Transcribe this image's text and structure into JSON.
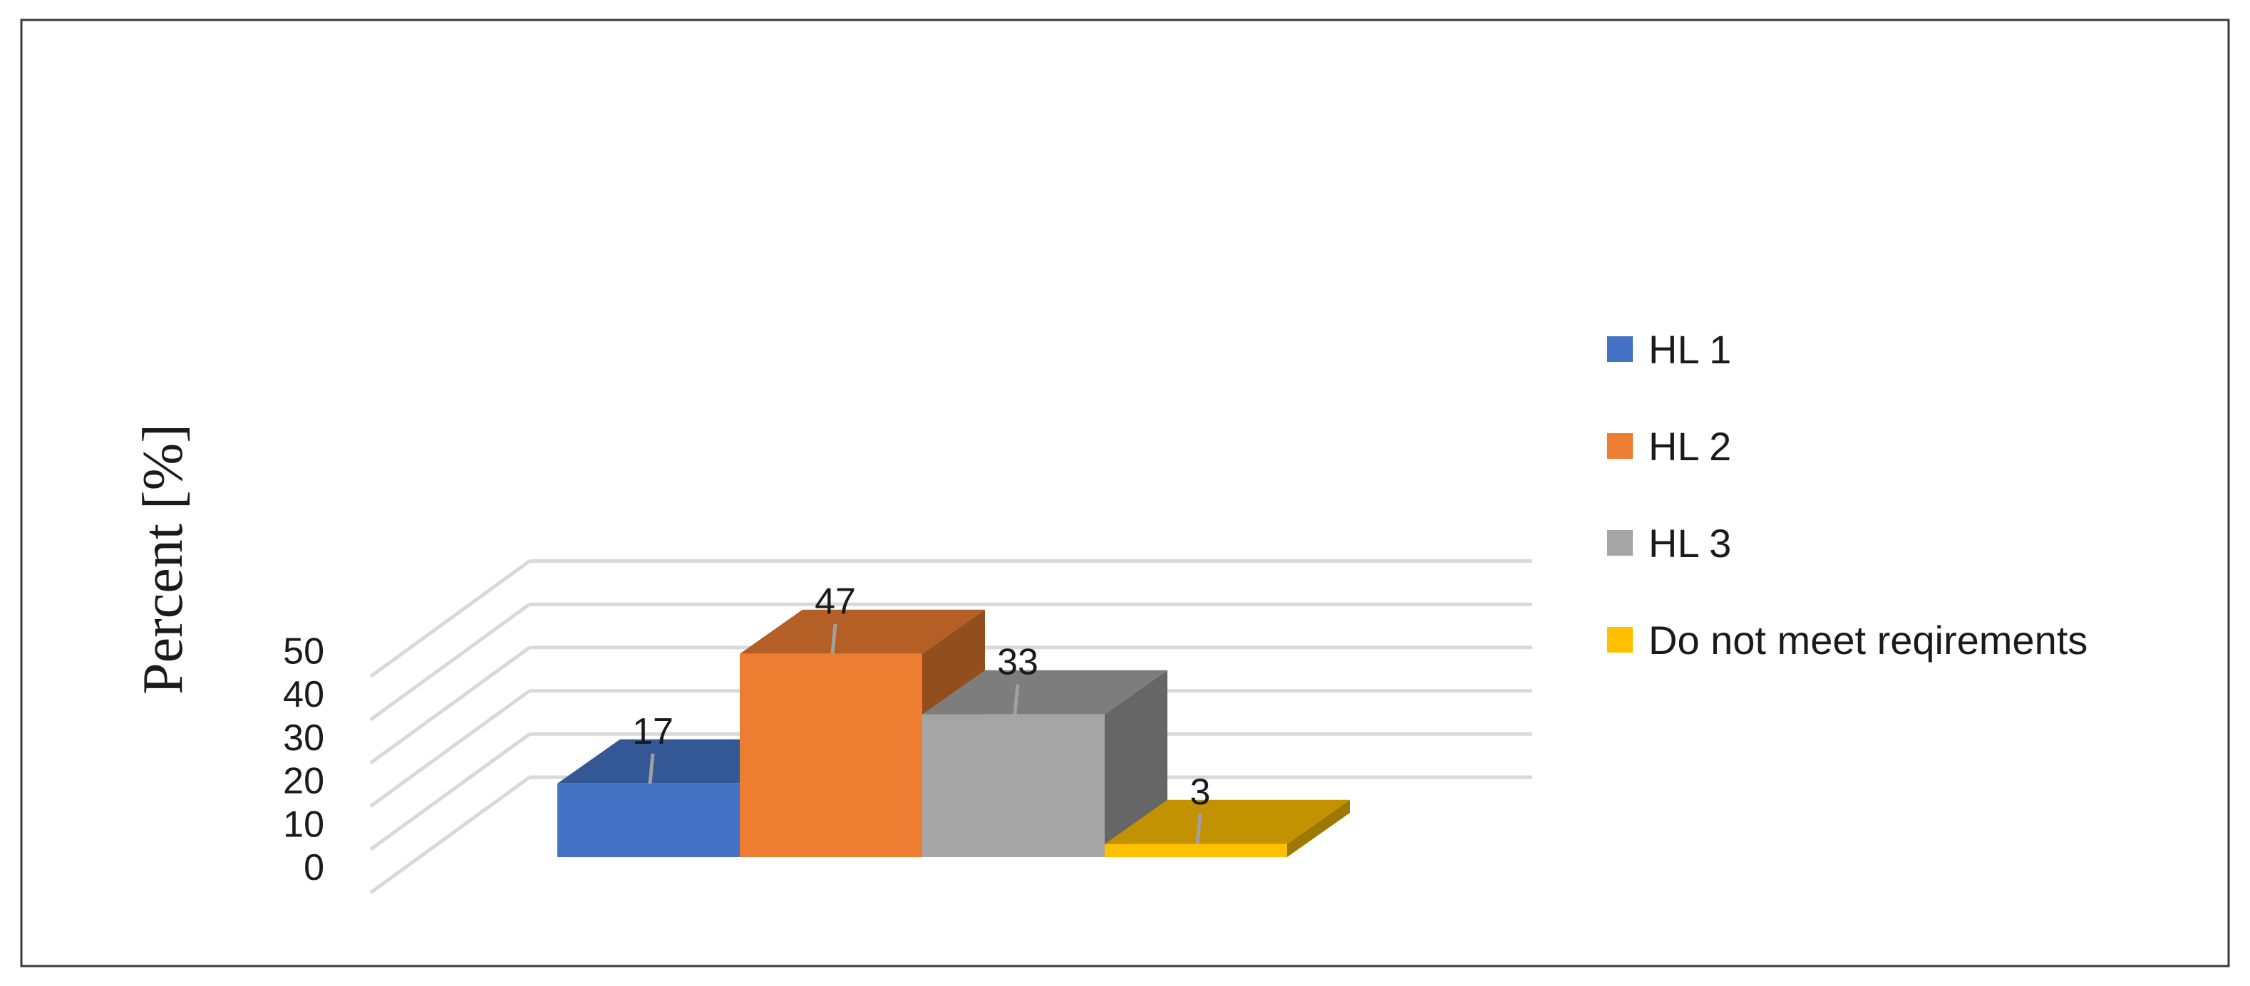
{
  "chart_data": {
    "type": "bar",
    "title": "",
    "xlabel": "",
    "ylabel": "Percent [%]",
    "ylim": [
      0,
      50
    ],
    "yticks": [
      0,
      10,
      20,
      30,
      40,
      50
    ],
    "grid": true,
    "legend_position": "right",
    "three_d": true,
    "series": [
      {
        "name": "HL 1",
        "value": 17,
        "color": "#4472C4"
      },
      {
        "name": "HL 2",
        "value": 47,
        "color": "#ED7D31"
      },
      {
        "name": "HL 3",
        "value": 33,
        "color": "#A5A5A5"
      },
      {
        "name": "Do not meet reqirements",
        "value": 3,
        "color": "#FFC000"
      }
    ]
  }
}
